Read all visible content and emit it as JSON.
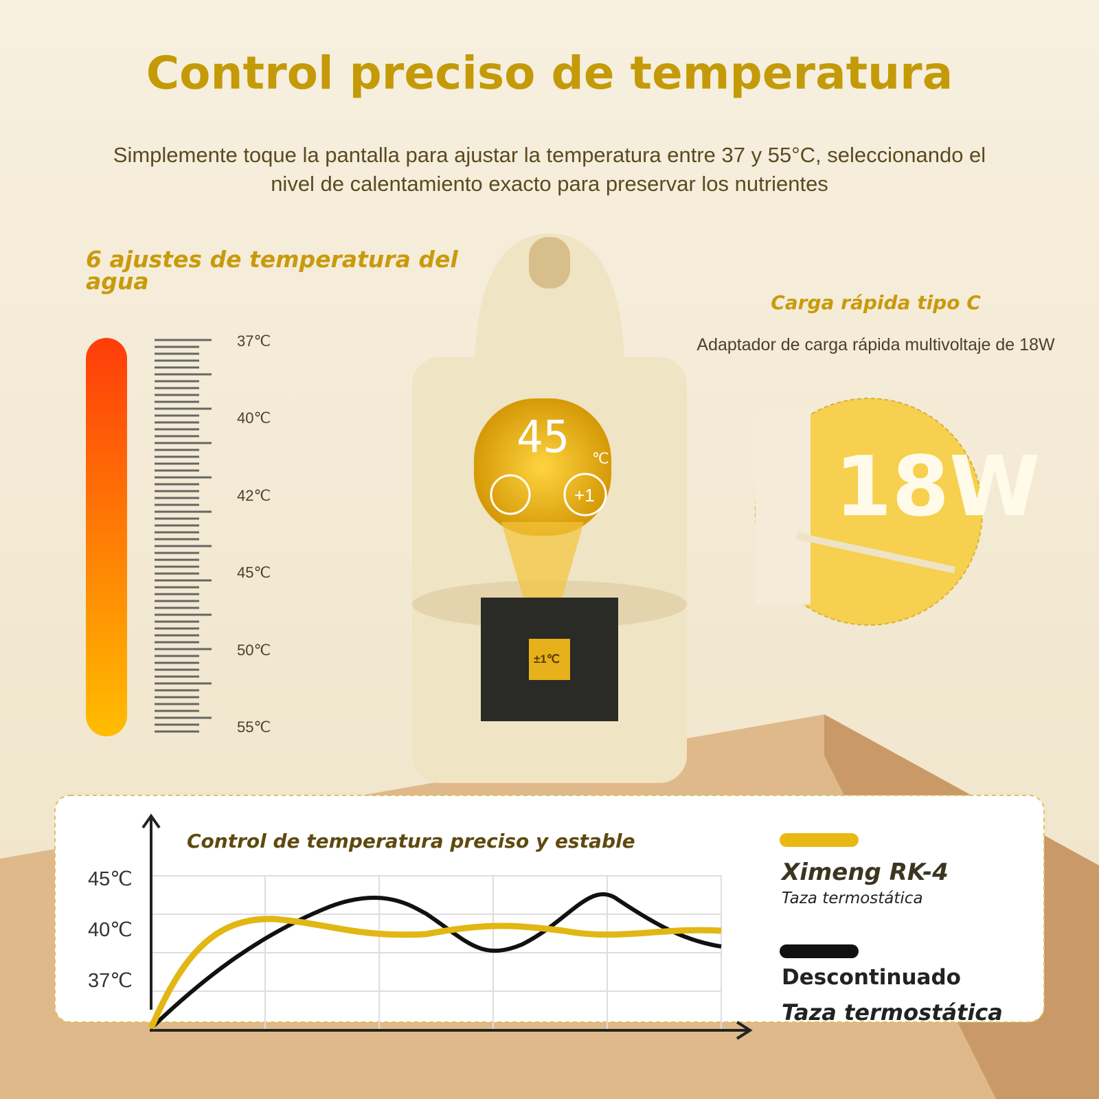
{
  "header": {
    "title": "Control preciso de temperatura",
    "subtitle_lines": [
      "Simplemente toque la pantalla para ajustar la temperatura entre 37 y 55°C, seleccionando el",
      "nivel de calentamiento exacto para preservar los nutrientes"
    ]
  },
  "scale": {
    "title": "6 ajustes de temperatura del agua",
    "labels": [
      "37℃",
      "40℃",
      "42℃",
      "45℃",
      "50℃",
      "55℃"
    ]
  },
  "charging": {
    "title": "Carga rápida tipo C",
    "description": "Adaptador de carga rápida multivoltaje de 18W",
    "badge": "18W"
  },
  "display": {
    "reading": "45",
    "unit": "℃",
    "button": "+1",
    "chip": "±1℃"
  },
  "comparison": {
    "title": "Control de temperatura preciso y estable",
    "yticks": [
      "45℃",
      "40℃",
      "37℃"
    ],
    "legend": [
      {
        "name": "Ximeng RK-4",
        "sub": "Taza termostática"
      },
      {
        "name": "Descontinuado",
        "sub": "Taza termostática"
      }
    ]
  }
}
